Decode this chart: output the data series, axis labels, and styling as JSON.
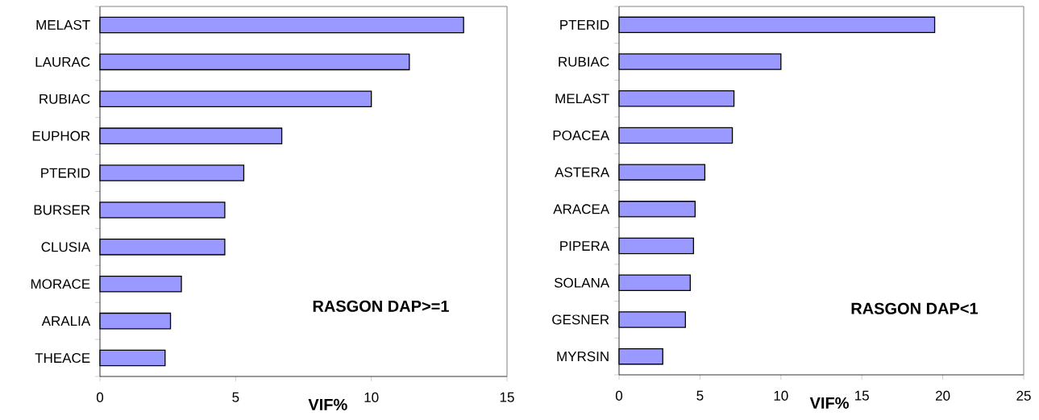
{
  "chart_data": [
    {
      "type": "bar",
      "orientation": "horizontal",
      "categories": [
        "MELAST",
        "LAURAC",
        "RUBIAC",
        "EUPHOR",
        "PTERID",
        "BURSER",
        "CLUSIA",
        "MORACE",
        "ARALIA",
        "THEACE"
      ],
      "values": [
        13.4,
        11.4,
        10.0,
        6.7,
        5.3,
        4.6,
        4.6,
        3.0,
        2.6,
        2.4
      ],
      "color": "#9999ff",
      "xlim": [
        0,
        15
      ],
      "xticks": [
        0,
        5,
        10,
        15
      ],
      "xlabel": "VIF%",
      "annotations": [
        "RASGON DAP>=1"
      ]
    },
    {
      "type": "bar",
      "orientation": "horizontal",
      "categories": [
        "PTERID",
        "RUBIAC",
        "MELAST",
        "POACEA",
        "ASTERA",
        "ARACEA",
        "PIPERA",
        "SOLANA",
        "GESNER",
        "MYRSIN"
      ],
      "values": [
        19.5,
        10.0,
        7.1,
        7.0,
        5.3,
        4.7,
        4.6,
        4.4,
        4.1,
        2.7
      ],
      "color": "#9999ff",
      "xlim": [
        0,
        25
      ],
      "xticks": [
        0,
        5,
        10,
        15,
        20,
        25
      ],
      "xlabel": "VIF%",
      "annotations": [
        "RASGON DAP<1"
      ]
    }
  ]
}
